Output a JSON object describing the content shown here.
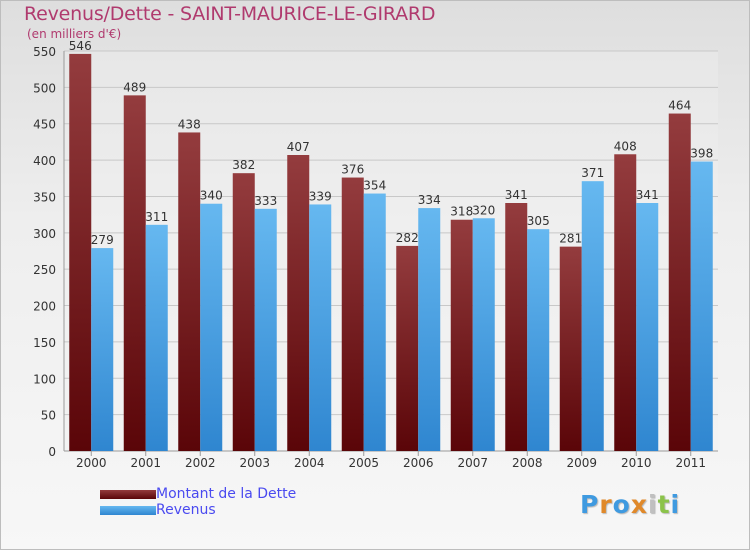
{
  "title": "Revenus/Dette - SAINT-MAURICE-LE-GIRARD",
  "subtitle": "(en milliers d'€)",
  "logo_text": "Proxiti",
  "colors": {
    "debt": "#6b1014",
    "debt_light": "#933b3d",
    "revenue": "#3f9ae0",
    "revenue_light": "#63b5ee",
    "text": "#333333",
    "accent": "#b03a6e"
  },
  "legend": [
    {
      "label": "Montant de la Dette",
      "color": "#6b1014"
    },
    {
      "label": "Revenus",
      "color": "#3f9ae0"
    }
  ],
  "chart_data": {
    "type": "bar",
    "title": "Revenus/Dette - SAINT-MAURICE-LE-GIRARD",
    "subtitle": "(en milliers d'€)",
    "categories": [
      "2000",
      "2001",
      "2002",
      "2003",
      "2004",
      "2005",
      "2006",
      "2007",
      "2008",
      "2009",
      "2010",
      "2011"
    ],
    "series": [
      {
        "name": "Montant de la Dette",
        "values": [
          546,
          489,
          438,
          382,
          407,
          376,
          282,
          318,
          341,
          281,
          408,
          464
        ]
      },
      {
        "name": "Revenus",
        "values": [
          279,
          311,
          340,
          333,
          339,
          354,
          334,
          320,
          305,
          371,
          341,
          398
        ]
      }
    ],
    "ylim": [
      0,
      550
    ],
    "yticks": [
      0,
      50,
      100,
      150,
      200,
      250,
      300,
      350,
      400,
      450,
      500,
      550
    ],
    "grid": true,
    "legend_position": "bottom-left"
  }
}
